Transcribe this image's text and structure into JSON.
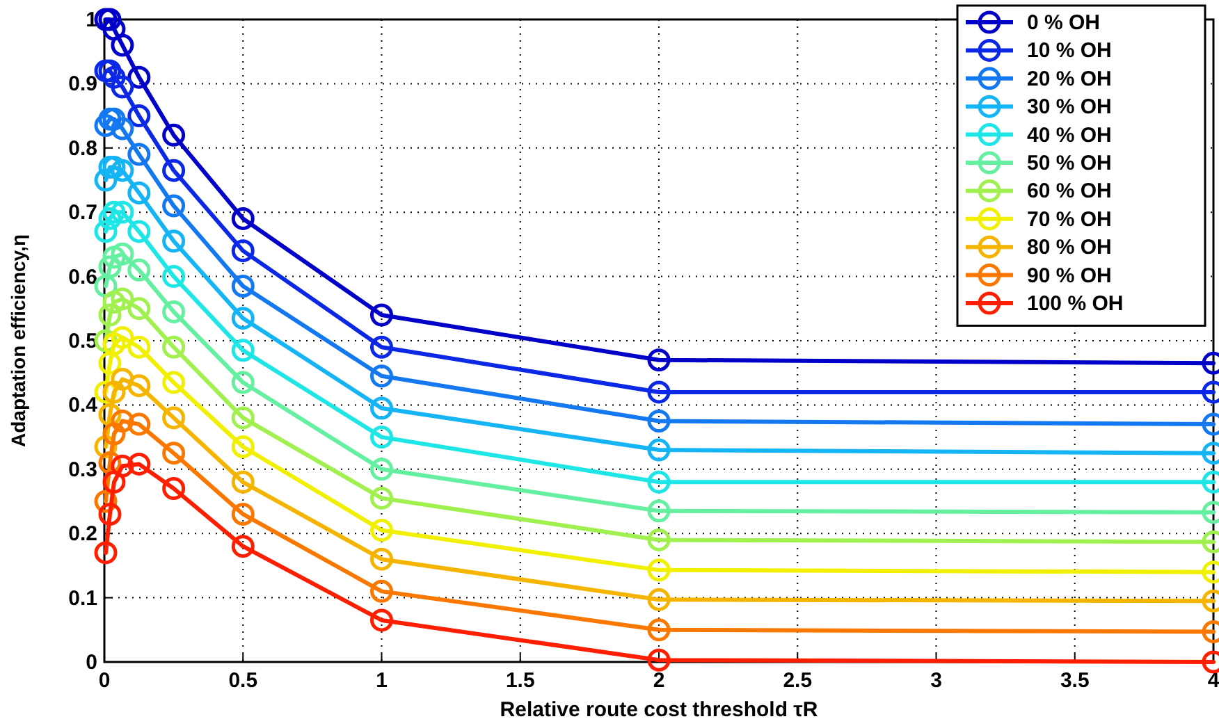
{
  "chart_data": {
    "type": "line",
    "xlabel": "Relative route cost threshold τR",
    "ylabel": "Adaptation efficiency,η",
    "x": [
      0.005,
      0.02,
      0.035,
      0.065,
      0.125,
      0.25,
      0.5,
      1,
      2,
      4
    ],
    "xlim": [
      0,
      4
    ],
    "xticks": [
      0,
      0.5,
      1,
      1.5,
      2,
      2.5,
      3,
      3.5,
      4
    ],
    "ylim": [
      0,
      1
    ],
    "yticks": [
      0,
      0.1,
      0.2,
      0.3,
      0.4,
      0.5,
      0.6,
      0.7,
      0.8,
      0.9,
      1
    ],
    "grid": true,
    "legend": "top right",
    "marker": "circle",
    "line_style": "solid",
    "series": [
      {
        "name": "0 % OH",
        "color": "#0000c8",
        "values": [
          1.0,
          1.0,
          0.985,
          0.96,
          0.91,
          0.82,
          0.69,
          0.54,
          0.47,
          0.465
        ]
      },
      {
        "name": "10 % OH",
        "color": "#0a28e6",
        "values": [
          0.92,
          0.92,
          0.91,
          0.895,
          0.85,
          0.765,
          0.64,
          0.49,
          0.42,
          0.42
        ]
      },
      {
        "name": "20 % OH",
        "color": "#1478f0",
        "values": [
          0.835,
          0.845,
          0.845,
          0.83,
          0.79,
          0.71,
          0.585,
          0.445,
          0.375,
          0.37
        ]
      },
      {
        "name": "30 % OH",
        "color": "#14b4f5",
        "values": [
          0.75,
          0.77,
          0.77,
          0.765,
          0.73,
          0.655,
          0.535,
          0.395,
          0.33,
          0.325
        ]
      },
      {
        "name": "40 % OH",
        "color": "#1ee6e6",
        "values": [
          0.67,
          0.69,
          0.7,
          0.7,
          0.67,
          0.6,
          0.485,
          0.35,
          0.28,
          0.28
        ]
      },
      {
        "name": "50 % OH",
        "color": "#64f0a0",
        "values": [
          0.585,
          0.615,
          0.63,
          0.635,
          0.61,
          0.545,
          0.435,
          0.3,
          0.235,
          0.233
        ]
      },
      {
        "name": "60 % OH",
        "color": "#a0f050",
        "values": [
          0.5,
          0.54,
          0.56,
          0.565,
          0.55,
          0.49,
          0.38,
          0.255,
          0.19,
          0.187
        ]
      },
      {
        "name": "70 % OH",
        "color": "#f0f000",
        "values": [
          0.42,
          0.465,
          0.495,
          0.505,
          0.49,
          0.435,
          0.335,
          0.205,
          0.143,
          0.14
        ]
      },
      {
        "name": "80 % OH",
        "color": "#f5b400",
        "values": [
          0.335,
          0.385,
          0.42,
          0.44,
          0.43,
          0.38,
          0.28,
          0.16,
          0.097,
          0.095
        ]
      },
      {
        "name": "90 % OH",
        "color": "#fa7800",
        "values": [
          0.25,
          0.31,
          0.355,
          0.375,
          0.37,
          0.325,
          0.23,
          0.11,
          0.05,
          0.047
        ]
      },
      {
        "name": "100 % OH",
        "color": "#ff1e00",
        "values": [
          0.17,
          0.23,
          0.28,
          0.305,
          0.308,
          0.27,
          0.18,
          0.065,
          0.003,
          0.0
        ]
      }
    ]
  }
}
